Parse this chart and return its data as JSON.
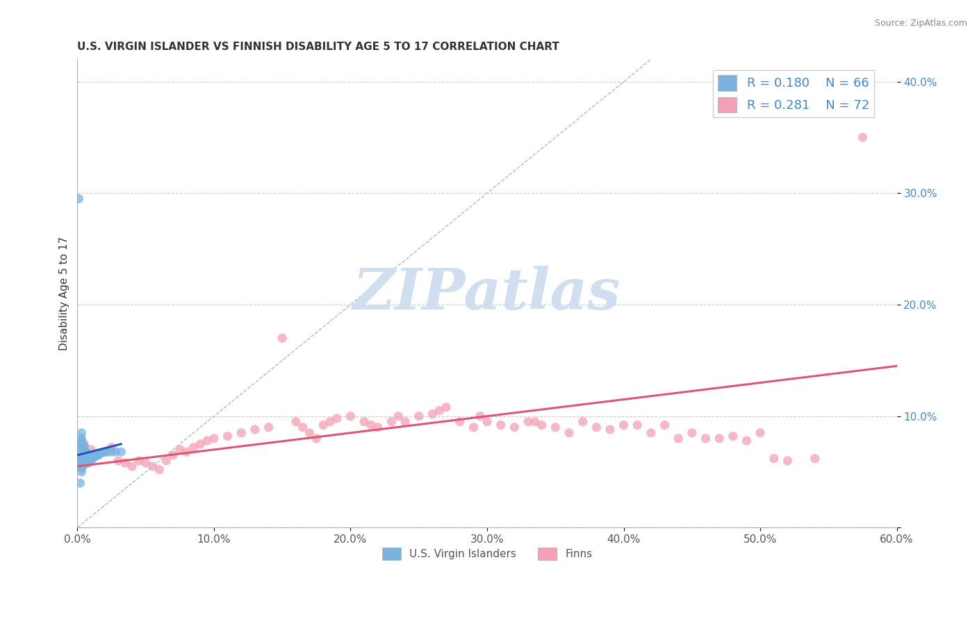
{
  "title": "U.S. VIRGIN ISLANDER VS FINNISH DISABILITY AGE 5 TO 17 CORRELATION CHART",
  "source": "Source: ZipAtlas.com",
  "ylabel": "Disability Age 5 to 17",
  "xlim": [
    0.0,
    0.6
  ],
  "ylim": [
    0.0,
    0.42
  ],
  "xticks": [
    0.0,
    0.1,
    0.2,
    0.3,
    0.4,
    0.5,
    0.6
  ],
  "yticks": [
    0.0,
    0.1,
    0.2,
    0.3,
    0.4
  ],
  "xtick_labels": [
    "0.0%",
    "10.0%",
    "20.0%",
    "30.0%",
    "40.0%",
    "50.0%",
    "60.0%"
  ],
  "ytick_labels": [
    "",
    "10.0%",
    "20.0%",
    "30.0%",
    "40.0%"
  ],
  "blue_R": 0.18,
  "blue_N": 66,
  "pink_R": 0.281,
  "pink_N": 72,
  "blue_color": "#7ab3e0",
  "pink_color": "#f4a0b5",
  "blue_line_color": "#2255bb",
  "pink_line_color": "#e05575",
  "ref_line_color": "#aabbd0",
  "watermark_color": "#d0dff0",
  "title_fontsize": 11,
  "blue_scatter_x": [
    0.001,
    0.001,
    0.001,
    0.001,
    0.001,
    0.002,
    0.002,
    0.002,
    0.002,
    0.002,
    0.002,
    0.002,
    0.003,
    0.003,
    0.003,
    0.003,
    0.003,
    0.003,
    0.003,
    0.003,
    0.003,
    0.003,
    0.003,
    0.003,
    0.003,
    0.003,
    0.004,
    0.004,
    0.004,
    0.004,
    0.004,
    0.004,
    0.004,
    0.005,
    0.005,
    0.005,
    0.005,
    0.005,
    0.006,
    0.006,
    0.006,
    0.006,
    0.007,
    0.007,
    0.007,
    0.008,
    0.008,
    0.008,
    0.009,
    0.009,
    0.01,
    0.01,
    0.011,
    0.012,
    0.013,
    0.014,
    0.015,
    0.016,
    0.018,
    0.02,
    0.022,
    0.025,
    0.028,
    0.032,
    0.001,
    0.002
  ],
  "blue_scatter_y": [
    0.06,
    0.065,
    0.068,
    0.07,
    0.072,
    0.055,
    0.06,
    0.063,
    0.067,
    0.07,
    0.073,
    0.075,
    0.05,
    0.053,
    0.057,
    0.06,
    0.063,
    0.066,
    0.068,
    0.07,
    0.072,
    0.074,
    0.076,
    0.078,
    0.08,
    0.085,
    0.055,
    0.058,
    0.062,
    0.065,
    0.068,
    0.072,
    0.075,
    0.06,
    0.063,
    0.066,
    0.07,
    0.073,
    0.058,
    0.062,
    0.065,
    0.068,
    0.06,
    0.063,
    0.067,
    0.058,
    0.062,
    0.065,
    0.06,
    0.063,
    0.06,
    0.063,
    0.062,
    0.063,
    0.065,
    0.065,
    0.065,
    0.066,
    0.067,
    0.068,
    0.068,
    0.068,
    0.068,
    0.068,
    0.295,
    0.04
  ],
  "pink_scatter_x": [
    0.005,
    0.01,
    0.015,
    0.02,
    0.025,
    0.03,
    0.035,
    0.04,
    0.045,
    0.05,
    0.055,
    0.06,
    0.065,
    0.07,
    0.075,
    0.08,
    0.085,
    0.09,
    0.095,
    0.1,
    0.11,
    0.12,
    0.13,
    0.14,
    0.15,
    0.16,
    0.165,
    0.17,
    0.175,
    0.18,
    0.185,
    0.19,
    0.2,
    0.21,
    0.215,
    0.22,
    0.23,
    0.235,
    0.24,
    0.25,
    0.26,
    0.265,
    0.27,
    0.28,
    0.29,
    0.295,
    0.3,
    0.31,
    0.32,
    0.33,
    0.335,
    0.34,
    0.35,
    0.36,
    0.37,
    0.38,
    0.39,
    0.4,
    0.41,
    0.42,
    0.43,
    0.44,
    0.45,
    0.46,
    0.47,
    0.48,
    0.49,
    0.5,
    0.51,
    0.52,
    0.54,
    0.575
  ],
  "pink_scatter_y": [
    0.075,
    0.07,
    0.065,
    0.068,
    0.072,
    0.06,
    0.058,
    0.055,
    0.06,
    0.058,
    0.055,
    0.052,
    0.06,
    0.065,
    0.07,
    0.068,
    0.072,
    0.075,
    0.078,
    0.08,
    0.082,
    0.085,
    0.088,
    0.09,
    0.17,
    0.095,
    0.09,
    0.085,
    0.08,
    0.092,
    0.095,
    0.098,
    0.1,
    0.095,
    0.092,
    0.09,
    0.095,
    0.1,
    0.095,
    0.1,
    0.102,
    0.105,
    0.108,
    0.095,
    0.09,
    0.1,
    0.095,
    0.092,
    0.09,
    0.095,
    0.095,
    0.092,
    0.09,
    0.085,
    0.095,
    0.09,
    0.088,
    0.092,
    0.092,
    0.085,
    0.092,
    0.08,
    0.085,
    0.08,
    0.08,
    0.082,
    0.078,
    0.085,
    0.062,
    0.06,
    0.062,
    0.35
  ],
  "pink_trend_x": [
    0.0,
    0.6
  ],
  "pink_trend_y": [
    0.055,
    0.145
  ],
  "blue_trend_x": [
    0.0,
    0.032
  ],
  "blue_trend_y": [
    0.065,
    0.075
  ]
}
